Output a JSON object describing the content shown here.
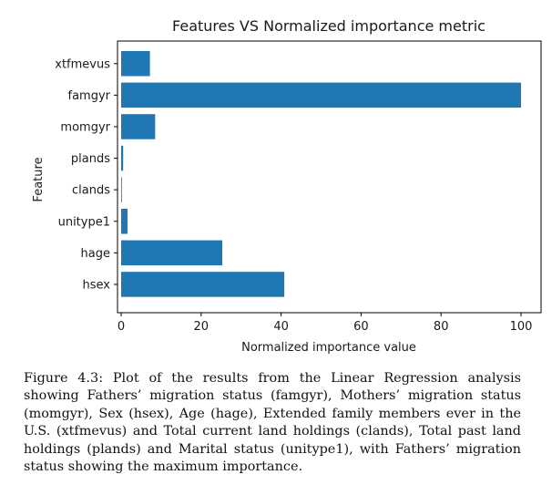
{
  "chart_data": {
    "type": "bar",
    "orientation": "horizontal",
    "title": "Features VS Normalized importance metric",
    "xlabel": "Normalized importance value",
    "ylabel": "Feature",
    "categories": [
      "xtfmevus",
      "famgyr",
      "momgyr",
      "plands",
      "clands",
      "unitype1",
      "hage",
      "hsex"
    ],
    "values": [
      7.2,
      100,
      8.5,
      0.5,
      0.1,
      1.6,
      25.3,
      40.8
    ],
    "xlim": [
      0,
      105
    ],
    "xticks": [
      0,
      20,
      40,
      60,
      80,
      100
    ],
    "grid": false,
    "bar_color": "#1f77b4"
  },
  "caption": {
    "text": "Figure 4.3: Plot of the results from the Linear Regression analysis showing Fathers’ migration status (famgyr), Mothers’ migration status (momgyr), Sex (hsex), Age (hage), Extended family members ever in the U.S. (xtfmevus) and Total current land holdings (clands), Total past land holdings (plands) and Marital status (unitype1), with Fathers’ migration status showing the maximum importance."
  }
}
